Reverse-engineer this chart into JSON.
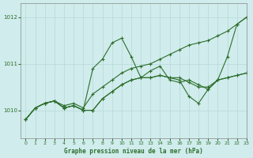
{
  "title": "Graphe pression niveau de la mer (hPa)",
  "background_color": "#d0ecec",
  "grid_color": "#b8d8d8",
  "line_color": "#2d6e2d",
  "xlim": [
    -0.5,
    23
  ],
  "ylim": [
    1009.4,
    1012.3
  ],
  "yticks": [
    1010,
    1011,
    1012
  ],
  "xticks": [
    0,
    1,
    2,
    3,
    4,
    5,
    6,
    7,
    8,
    9,
    10,
    11,
    12,
    13,
    14,
    15,
    16,
    17,
    18,
    19,
    20,
    21,
    22,
    23
  ],
  "s1": [
    1009.8,
    1010.05,
    1010.2,
    1010.25,
    1010.1,
    1010.15,
    1010.05,
    1010.4,
    1010.55,
    1010.7,
    1010.85,
    1010.9,
    1010.95,
    1011.0,
    1011.1,
    1011.2,
    1011.3,
    1011.4,
    1011.45,
    1011.55,
    1011.6,
    1011.7,
    1011.85,
    1012.0
  ],
  "s2": [
    1009.8,
    1010.05,
    1010.2,
    1010.25,
    1010.1,
    1010.15,
    1010.05,
    1010.9,
    1011.1,
    1011.5,
    1011.55,
    1011.25,
    1010.85,
    1010.95,
    1010.95,
    1010.65,
    1010.6,
    1010.65,
    1010.55,
    1010.45,
    1010.65,
    1011.15,
    1011.85,
    1012.0
  ],
  "s3": [
    1009.8,
    1010.05,
    1010.2,
    1010.25,
    1010.1,
    1010.1,
    1010.0,
    1010.0,
    1010.25,
    1010.45,
    1010.6,
    1010.7,
    1010.75,
    1010.75,
    1010.8,
    1010.75,
    1010.75,
    1010.65,
    1010.55,
    1010.5,
    1010.65,
    1010.7,
    1010.8,
    1010.85
  ],
  "s4": [
    1009.8,
    1010.05,
    1010.2,
    1010.25,
    1010.1,
    1010.1,
    1010.0,
    1010.0,
    1010.25,
    1010.45,
    1010.6,
    1010.7,
    1010.75,
    1010.75,
    1010.8,
    1010.75,
    1010.65,
    1010.3,
    1010.15,
    1010.45,
    1010.65,
    1010.7,
    1010.8,
    1010.85
  ]
}
